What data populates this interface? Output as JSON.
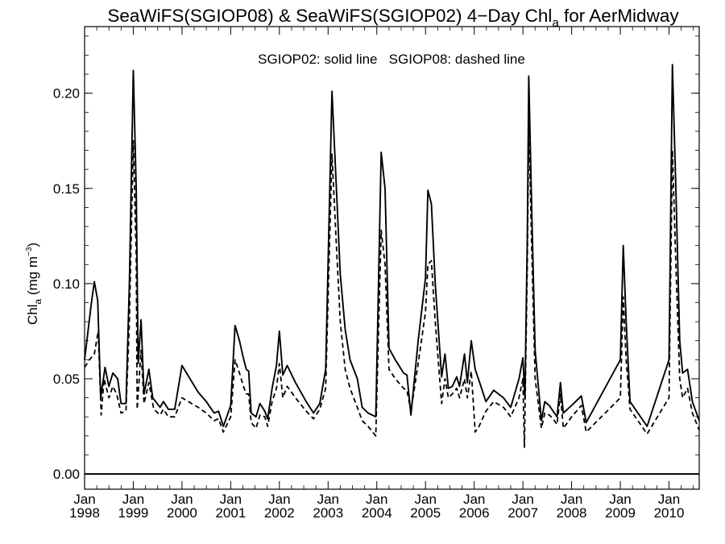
{
  "chart_data": {
    "type": "line",
    "title_main": "SeaWiFS(SGIOP08) & SeaWiFS(SGIOP02) 4−Day Chl",
    "title_sub": "a",
    "title_tail": " for AerMidway",
    "annotation": "SGIOP02: solid line   SGIOP08: dashed line",
    "ylabel_main": "Chl",
    "ylabel_sub": "a",
    "ylabel_unit": " (mg m",
    "ylabel_sup": "−3",
    "ylabel_close": ")",
    "ylim": [
      -0.008,
      0.235
    ],
    "xlim": [
      1998.0,
      2010.62
    ],
    "yticks": [
      {
        "value": 0.0,
        "label": "0.00"
      },
      {
        "value": 0.05,
        "label": "0.05"
      },
      {
        "value": 0.1,
        "label": "0.10"
      },
      {
        "value": 0.15,
        "label": "0.15"
      },
      {
        "value": 0.2,
        "label": "0.20"
      }
    ],
    "xticks": [
      {
        "value": 1998,
        "month": "Jan",
        "year": "1998"
      },
      {
        "value": 1999,
        "month": "Jan",
        "year": "1999"
      },
      {
        "value": 2000,
        "month": "Jan",
        "year": "2000"
      },
      {
        "value": 2001,
        "month": "Jan",
        "year": "2001"
      },
      {
        "value": 2002,
        "month": "Jan",
        "year": "2002"
      },
      {
        "value": 2003,
        "month": "Jan",
        "year": "2003"
      },
      {
        "value": 2004,
        "month": "Jan",
        "year": "2004"
      },
      {
        "value": 2005,
        "month": "Jan",
        "year": "2005"
      },
      {
        "value": 2006,
        "month": "Jan",
        "year": "2006"
      },
      {
        "value": 2007,
        "month": "Jan",
        "year": "2007"
      },
      {
        "value": 2008,
        "month": "Jan",
        "year": "2008"
      },
      {
        "value": 2009,
        "month": "Jan",
        "year": "2009"
      },
      {
        "value": 2010,
        "month": "Jan",
        "year": "2010"
      }
    ],
    "series": [
      {
        "dash": false,
        "points": [
          [
            1998.0,
            0.06
          ],
          [
            1998.14,
            0.09
          ],
          [
            1998.2,
            0.101
          ],
          [
            1998.27,
            0.091
          ],
          [
            1998.33,
            0.04
          ],
          [
            1998.42,
            0.056
          ],
          [
            1998.5,
            0.046
          ],
          [
            1998.58,
            0.053
          ],
          [
            1998.68,
            0.05
          ],
          [
            1998.75,
            0.037
          ],
          [
            1998.85,
            0.037
          ],
          [
            1998.92,
            0.1
          ],
          [
            1999.0,
            0.212
          ],
          [
            1999.06,
            0.15
          ],
          [
            1999.1,
            0.058
          ],
          [
            1999.16,
            0.081
          ],
          [
            1999.22,
            0.042
          ],
          [
            1999.32,
            0.055
          ],
          [
            1999.4,
            0.04
          ],
          [
            1999.55,
            0.035
          ],
          [
            1999.62,
            0.038
          ],
          [
            1999.72,
            0.034
          ],
          [
            1999.85,
            0.034
          ],
          [
            2000.0,
            0.057
          ],
          [
            2000.33,
            0.043
          ],
          [
            2000.5,
            0.038
          ],
          [
            2000.66,
            0.032
          ],
          [
            2000.75,
            0.033
          ],
          [
            2000.85,
            0.025
          ],
          [
            2001.0,
            0.036
          ],
          [
            2001.09,
            0.078
          ],
          [
            2001.18,
            0.07
          ],
          [
            2001.25,
            0.062
          ],
          [
            2001.32,
            0.055
          ],
          [
            2001.37,
            0.054
          ],
          [
            2001.42,
            0.032
          ],
          [
            2001.52,
            0.03
          ],
          [
            2001.6,
            0.037
          ],
          [
            2001.7,
            0.033
          ],
          [
            2001.76,
            0.029
          ],
          [
            2001.85,
            0.045
          ],
          [
            2001.94,
            0.057
          ],
          [
            2002.0,
            0.075
          ],
          [
            2002.07,
            0.052
          ],
          [
            2002.16,
            0.057
          ],
          [
            2002.33,
            0.048
          ],
          [
            2002.55,
            0.038
          ],
          [
            2002.7,
            0.032
          ],
          [
            2002.83,
            0.037
          ],
          [
            2002.95,
            0.055
          ],
          [
            2003.08,
            0.201
          ],
          [
            2003.17,
            0.15
          ],
          [
            2003.25,
            0.105
          ],
          [
            2003.35,
            0.076
          ],
          [
            2003.45,
            0.06
          ],
          [
            2003.6,
            0.05
          ],
          [
            2003.7,
            0.035
          ],
          [
            2003.82,
            0.032
          ],
          [
            2003.98,
            0.03
          ],
          [
            2004.09,
            0.169
          ],
          [
            2004.17,
            0.15
          ],
          [
            2004.25,
            0.066
          ],
          [
            2004.38,
            0.06
          ],
          [
            2004.55,
            0.053
          ],
          [
            2004.62,
            0.052
          ],
          [
            2004.7,
            0.031
          ],
          [
            2004.85,
            0.07
          ],
          [
            2005.0,
            0.103
          ],
          [
            2005.05,
            0.149
          ],
          [
            2005.12,
            0.142
          ],
          [
            2005.2,
            0.1
          ],
          [
            2005.33,
            0.051
          ],
          [
            2005.4,
            0.063
          ],
          [
            2005.47,
            0.045
          ],
          [
            2005.55,
            0.046
          ],
          [
            2005.64,
            0.051
          ],
          [
            2005.7,
            0.046
          ],
          [
            2005.8,
            0.063
          ],
          [
            2005.86,
            0.048
          ],
          [
            2005.94,
            0.07
          ],
          [
            2006.02,
            0.055
          ],
          [
            2006.1,
            0.049
          ],
          [
            2006.24,
            0.038
          ],
          [
            2006.4,
            0.044
          ],
          [
            2006.6,
            0.04
          ],
          [
            2006.75,
            0.035
          ],
          [
            2006.92,
            0.05
          ],
          [
            2007.0,
            0.061
          ],
          [
            2007.04,
            0.04
          ],
          [
            2007.09,
            0.125
          ],
          [
            2007.12,
            0.209
          ],
          [
            2007.18,
            0.14
          ],
          [
            2007.25,
            0.065
          ],
          [
            2007.38,
            0.028
          ],
          [
            2007.45,
            0.038
          ],
          [
            2007.54,
            0.036
          ],
          [
            2007.62,
            0.033
          ],
          [
            2007.7,
            0.03
          ],
          [
            2007.77,
            0.048
          ],
          [
            2007.83,
            0.032
          ],
          [
            2008.0,
            0.036
          ],
          [
            2008.2,
            0.041
          ],
          [
            2008.3,
            0.027
          ],
          [
            2009.0,
            0.06
          ],
          [
            2009.06,
            0.12
          ],
          [
            2009.12,
            0.08
          ],
          [
            2009.2,
            0.038
          ],
          [
            2009.55,
            0.025
          ],
          [
            2010.0,
            0.06
          ],
          [
            2010.07,
            0.215
          ],
          [
            2010.14,
            0.15
          ],
          [
            2010.22,
            0.07
          ],
          [
            2010.28,
            0.053
          ],
          [
            2010.38,
            0.055
          ],
          [
            2010.48,
            0.038
          ],
          [
            2010.62,
            0.028
          ]
        ]
      },
      {
        "dash": true,
        "points": [
          [
            1998.0,
            0.056
          ],
          [
            1998.1,
            0.06
          ],
          [
            1998.2,
            0.063
          ],
          [
            1998.28,
            0.075
          ],
          [
            1998.34,
            0.031
          ],
          [
            1998.4,
            0.05
          ],
          [
            1998.5,
            0.04
          ],
          [
            1998.58,
            0.046
          ],
          [
            1998.66,
            0.042
          ],
          [
            1998.75,
            0.032
          ],
          [
            1998.85,
            0.033
          ],
          [
            1998.92,
            0.08
          ],
          [
            1999.0,
            0.175
          ],
          [
            1999.06,
            0.115
          ],
          [
            1999.08,
            0.034
          ],
          [
            1999.16,
            0.065
          ],
          [
            1999.22,
            0.037
          ],
          [
            1999.32,
            0.048
          ],
          [
            1999.42,
            0.034
          ],
          [
            1999.55,
            0.031
          ],
          [
            1999.62,
            0.034
          ],
          [
            1999.72,
            0.03
          ],
          [
            1999.85,
            0.03
          ],
          [
            2000.0,
            0.04
          ],
          [
            2000.33,
            0.035
          ],
          [
            2000.5,
            0.032
          ],
          [
            2000.66,
            0.028
          ],
          [
            2000.75,
            0.029
          ],
          [
            2000.85,
            0.022
          ],
          [
            2001.0,
            0.03
          ],
          [
            2001.09,
            0.06
          ],
          [
            2001.18,
            0.053
          ],
          [
            2001.25,
            0.047
          ],
          [
            2001.32,
            0.042
          ],
          [
            2001.37,
            0.042
          ],
          [
            2001.42,
            0.027
          ],
          [
            2001.52,
            0.024
          ],
          [
            2001.6,
            0.031
          ],
          [
            2001.7,
            0.03
          ],
          [
            2001.76,
            0.025
          ],
          [
            2001.85,
            0.038
          ],
          [
            2001.94,
            0.045
          ],
          [
            2002.0,
            0.058
          ],
          [
            2002.07,
            0.04
          ],
          [
            2002.16,
            0.046
          ],
          [
            2002.33,
            0.04
          ],
          [
            2002.55,
            0.033
          ],
          [
            2002.7,
            0.029
          ],
          [
            2002.83,
            0.034
          ],
          [
            2002.95,
            0.045
          ],
          [
            2003.08,
            0.168
          ],
          [
            2003.17,
            0.12
          ],
          [
            2003.25,
            0.08
          ],
          [
            2003.35,
            0.055
          ],
          [
            2003.45,
            0.045
          ],
          [
            2003.6,
            0.035
          ],
          [
            2003.7,
            0.028
          ],
          [
            2003.82,
            0.025
          ],
          [
            2003.98,
            0.02
          ],
          [
            2004.09,
            0.128
          ],
          [
            2004.17,
            0.11
          ],
          [
            2004.25,
            0.055
          ],
          [
            2004.38,
            0.05
          ],
          [
            2004.55,
            0.045
          ],
          [
            2004.62,
            0.044
          ],
          [
            2004.7,
            0.033
          ],
          [
            2004.85,
            0.058
          ],
          [
            2005.0,
            0.085
          ],
          [
            2005.05,
            0.11
          ],
          [
            2005.12,
            0.112
          ],
          [
            2005.2,
            0.08
          ],
          [
            2005.33,
            0.037
          ],
          [
            2005.4,
            0.05
          ],
          [
            2005.47,
            0.04
          ],
          [
            2005.55,
            0.042
          ],
          [
            2005.64,
            0.045
          ],
          [
            2005.7,
            0.04
          ],
          [
            2005.8,
            0.05
          ],
          [
            2005.86,
            0.04
          ],
          [
            2005.94,
            0.054
          ],
          [
            2006.02,
            0.022
          ],
          [
            2006.1,
            0.025
          ],
          [
            2006.24,
            0.033
          ],
          [
            2006.4,
            0.038
          ],
          [
            2006.6,
            0.035
          ],
          [
            2006.75,
            0.03
          ],
          [
            2006.92,
            0.04
          ],
          [
            2007.0,
            0.05
          ],
          [
            2007.03,
            0.014
          ],
          [
            2007.09,
            0.11
          ],
          [
            2007.12,
            0.183
          ],
          [
            2007.18,
            0.12
          ],
          [
            2007.25,
            0.05
          ],
          [
            2007.38,
            0.024
          ],
          [
            2007.45,
            0.032
          ],
          [
            2007.54,
            0.031
          ],
          [
            2007.62,
            0.029
          ],
          [
            2007.7,
            0.026
          ],
          [
            2007.77,
            0.042
          ],
          [
            2007.83,
            0.024
          ],
          [
            2008.0,
            0.03
          ],
          [
            2008.2,
            0.036
          ],
          [
            2008.3,
            0.022
          ],
          [
            2009.0,
            0.04
          ],
          [
            2009.06,
            0.093
          ],
          [
            2009.12,
            0.06
          ],
          [
            2009.2,
            0.034
          ],
          [
            2009.55,
            0.021
          ],
          [
            2010.0,
            0.04
          ],
          [
            2010.07,
            0.17
          ],
          [
            2010.14,
            0.11
          ],
          [
            2010.22,
            0.05
          ],
          [
            2010.28,
            0.04
          ],
          [
            2010.38,
            0.045
          ],
          [
            2010.48,
            0.032
          ],
          [
            2010.62,
            0.023
          ]
        ]
      }
    ],
    "zero_line": 0.0
  }
}
